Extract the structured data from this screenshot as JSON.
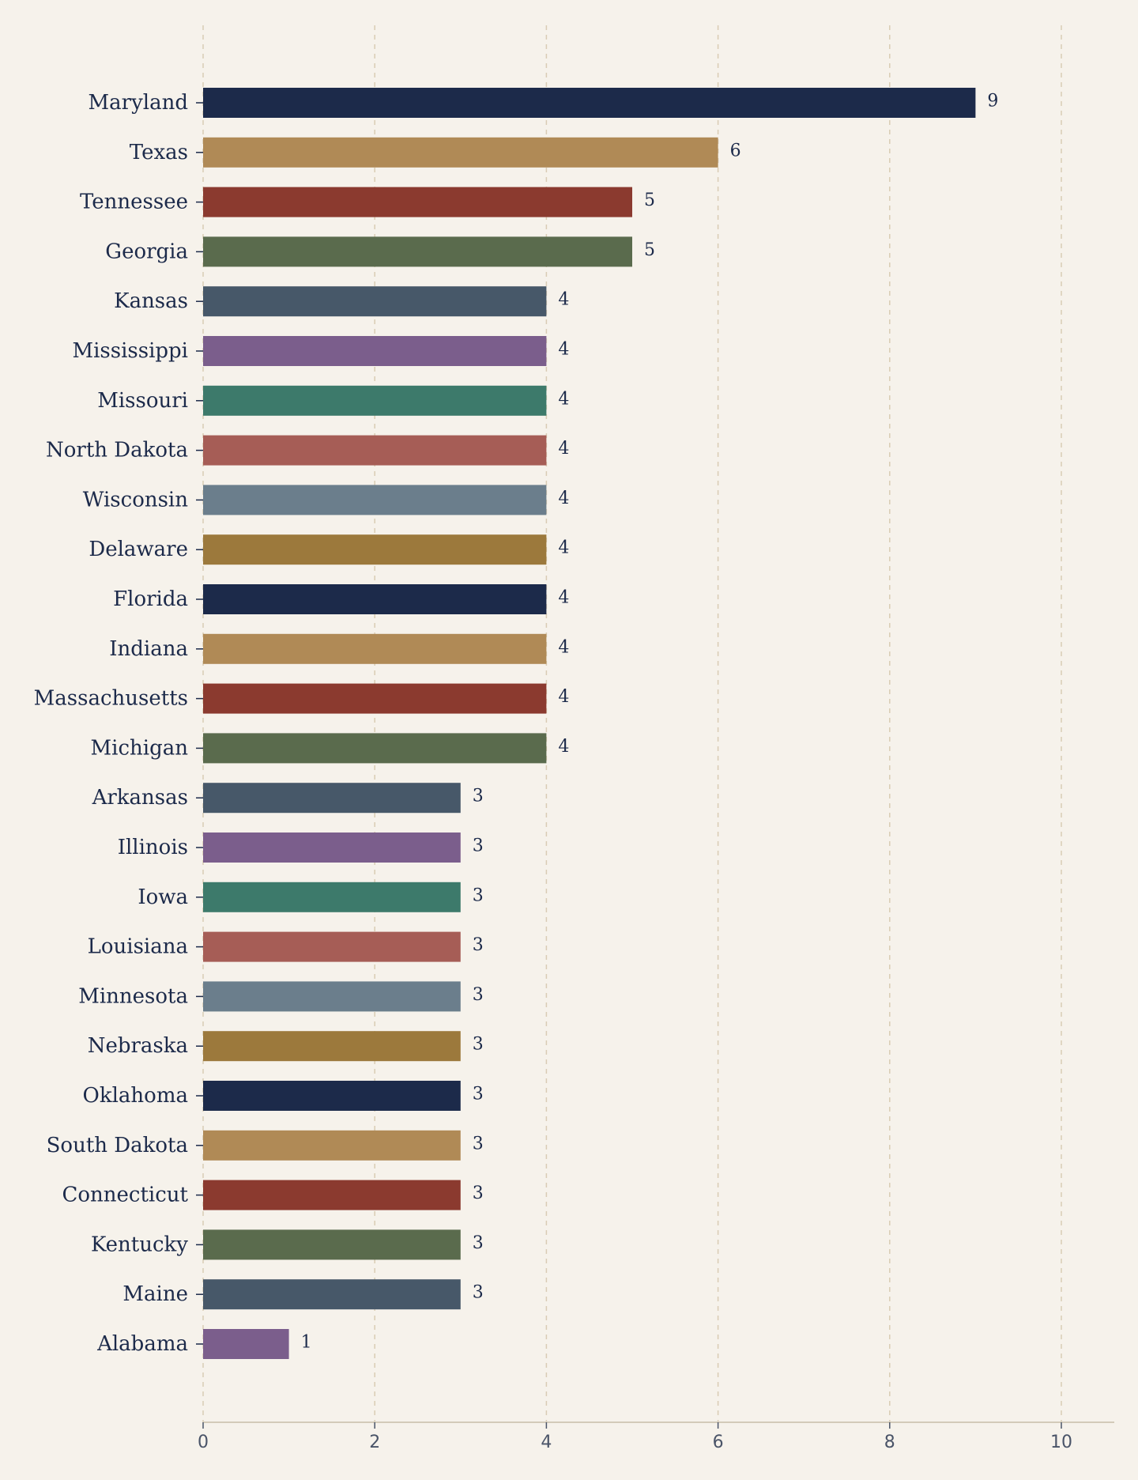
{
  "chart_data": {
    "type": "bar",
    "orientation": "horizontal",
    "title": "",
    "xlabel": "",
    "ylabel": "",
    "xlim": [
      0,
      10.6
    ],
    "x_ticks": [
      0,
      2,
      4,
      6,
      8,
      10
    ],
    "grid": "vertical dashed",
    "legend": "none",
    "categories": [
      "Maryland",
      "Texas",
      "Tennessee",
      "Georgia",
      "Kansas",
      "Mississippi",
      "Missouri",
      "North Dakota",
      "Wisconsin",
      "Delaware",
      "Florida",
      "Indiana",
      "Massachusetts",
      "Michigan",
      "Arkansas",
      "Illinois",
      "Iowa",
      "Louisiana",
      "Minnesota",
      "Nebraska",
      "Oklahoma",
      "South Dakota",
      "Connecticut",
      "Kentucky",
      "Maine",
      "Alabama"
    ],
    "values": [
      9,
      6,
      5,
      5,
      4,
      4,
      4,
      4,
      4,
      4,
      4,
      4,
      4,
      4,
      3,
      3,
      3,
      3,
      3,
      3,
      3,
      3,
      3,
      3,
      3,
      1
    ],
    "palette": [
      "#1c2a4a",
      "#b08a56",
      "#8b3a2f",
      "#5a6b4d",
      "#475869",
      "#7b5e8c",
      "#3d7a6b",
      "#a65d56",
      "#6b7e8c",
      "#9c793c"
    ],
    "colors": {
      "background": "#f6f2eb",
      "grid": "#d9ccb4",
      "axis": "#d3cab9",
      "label_text": "#1c2a4a",
      "tick_text": "#4a5468"
    }
  }
}
